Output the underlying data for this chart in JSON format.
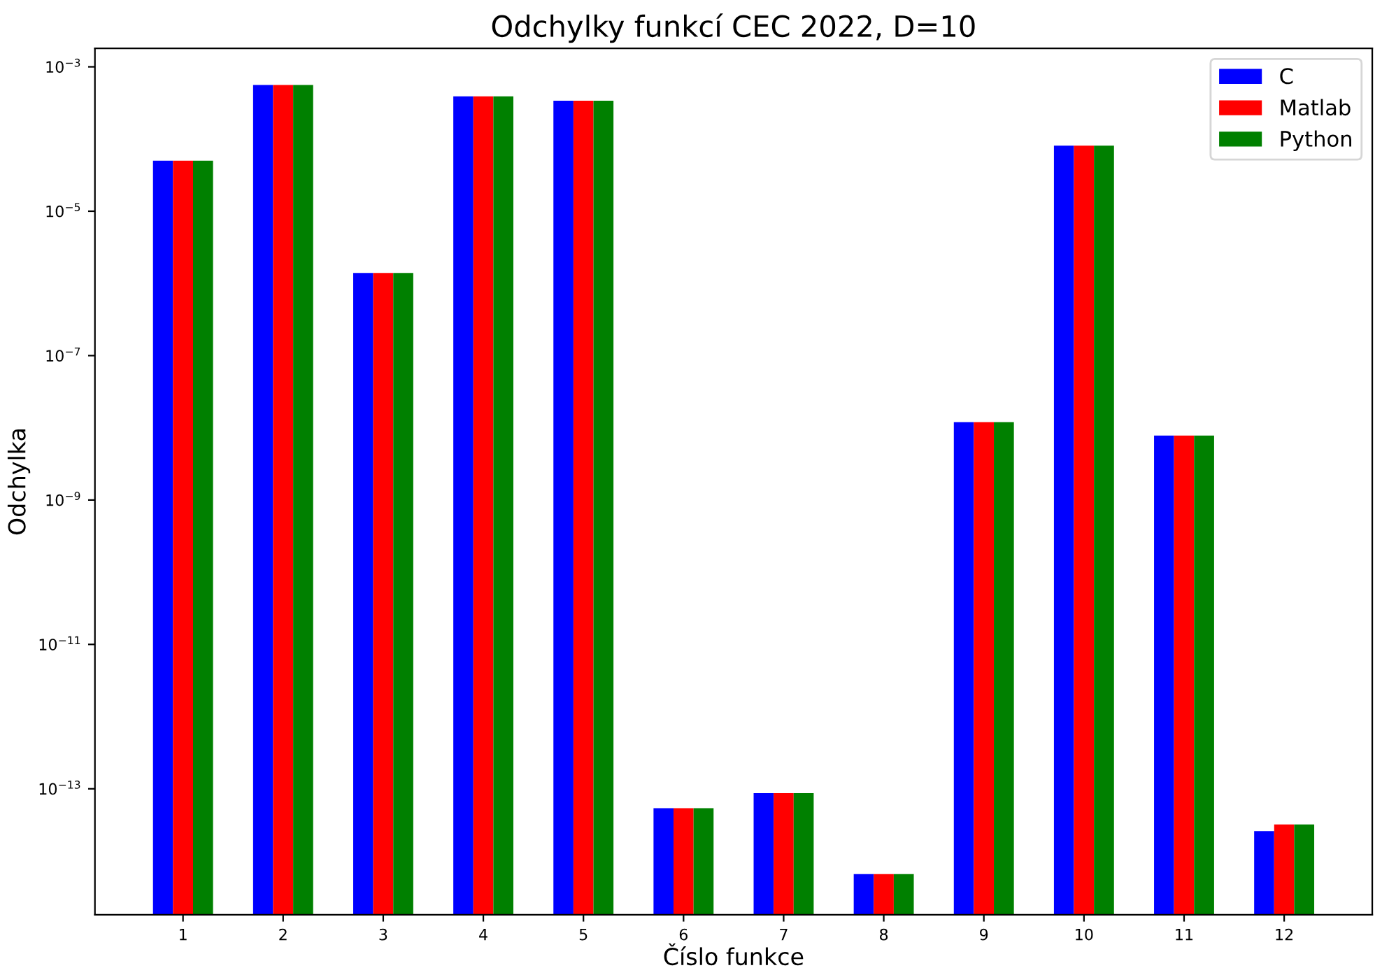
{
  "chart_data": {
    "type": "bar",
    "title": "Odchylky funkcí CEC 2022, D=10",
    "xlabel": "Číslo funkce",
    "ylabel": "Odchylka",
    "categories": [
      "1",
      "2",
      "3",
      "4",
      "5",
      "6",
      "7",
      "8",
      "9",
      "10",
      "11",
      "12"
    ],
    "series": [
      {
        "name": "C",
        "color": "#0000ff",
        "values": [
          5e-05,
          0.00056,
          1.4e-06,
          0.00039,
          0.00034,
          5.4e-14,
          8.7e-14,
          6.6e-15,
          1.2e-08,
          8.1e-05,
          7.8e-09,
          2.6e-14
        ]
      },
      {
        "name": "Matlab",
        "color": "#ff0000",
        "values": [
          5e-05,
          0.00056,
          1.4e-06,
          0.00039,
          0.00034,
          5.4e-14,
          8.7e-14,
          6.6e-15,
          1.2e-08,
          8.1e-05,
          7.8e-09,
          3.2e-14
        ]
      },
      {
        "name": "Python",
        "color": "#008000",
        "values": [
          5e-05,
          0.00056,
          1.4e-06,
          0.00039,
          0.00034,
          5.4e-14,
          8.7e-14,
          6.6e-15,
          1.2e-08,
          8.1e-05,
          7.8e-09,
          3.2e-14
        ]
      }
    ],
    "log": "y",
    "ylim": [
      1.8e-15,
      0.0018
    ],
    "yticks": [
      {
        "value": 1e-13,
        "label": "10$^{−13}$"
      },
      {
        "value": 1e-11,
        "label": "10$^{−11}$"
      },
      {
        "value": 1e-09,
        "label": "10$^{−9}$"
      },
      {
        "value": 1e-07,
        "label": "10$^{−7}$"
      },
      {
        "value": 1e-05,
        "label": "10$^{−5}$"
      },
      {
        "value": 0.001,
        "label": "10$^{−3}$"
      }
    ],
    "grid": false,
    "legend": "top right"
  }
}
